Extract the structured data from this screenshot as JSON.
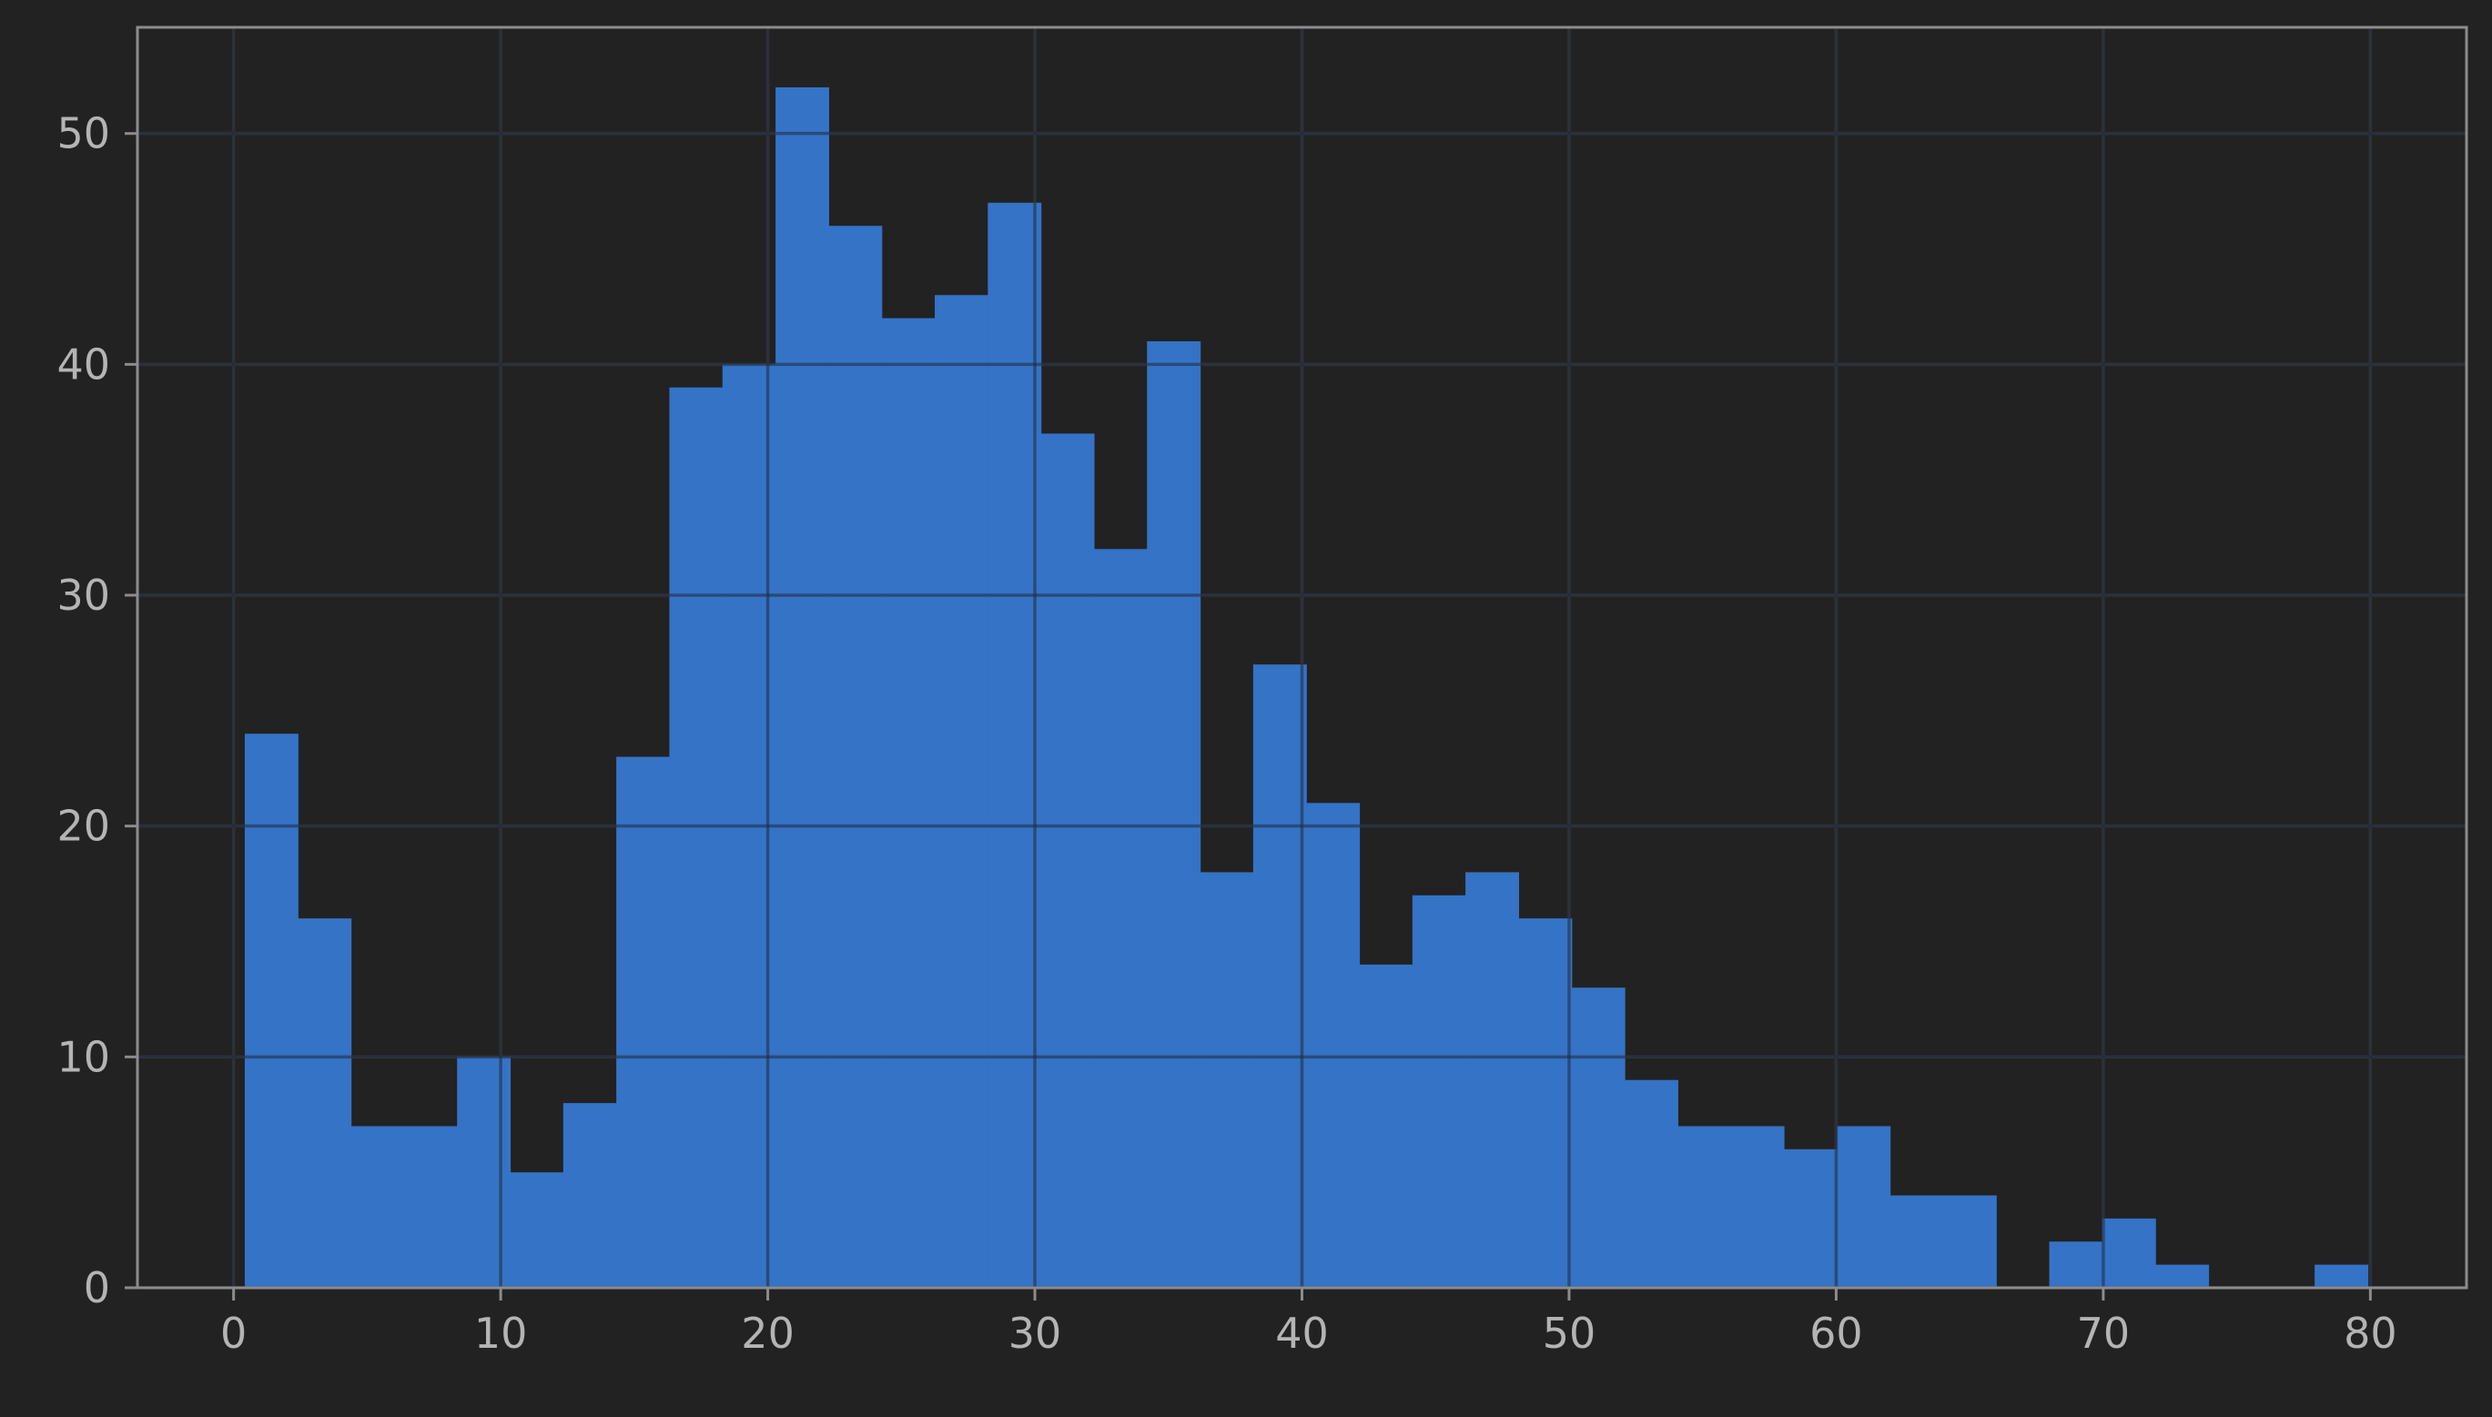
{
  "chart_data": {
    "type": "bar",
    "subtype": "histogram",
    "title": "",
    "xlabel": "",
    "ylabel": "",
    "xlim": [
      -3.6,
      83.6
    ],
    "ylim": [
      0,
      54.6
    ],
    "grid": true,
    "legend": "none",
    "x_ticks": [
      "0",
      "10",
      "20",
      "30",
      "40",
      "50",
      "60",
      "70",
      "80"
    ],
    "y_ticks": [
      "0",
      "10",
      "20",
      "30",
      "40",
      "50"
    ],
    "bin_start": 0.42,
    "bin_width": 1.987,
    "counts": [
      24,
      16,
      7,
      7,
      10,
      5,
      8,
      23,
      39,
      40,
      52,
      46,
      42,
      43,
      47,
      37,
      32,
      41,
      18,
      27,
      21,
      14,
      17,
      18,
      16,
      13,
      9,
      7,
      7,
      6,
      7,
      4,
      4,
      0,
      2,
      3,
      1,
      0,
      0,
      1
    ],
    "colors": {
      "background": "#222222",
      "bar": "#3573c6",
      "grid": "#3a3a3a",
      "axis": "#8c8c8c",
      "tick_label": "#b4b4b4"
    }
  }
}
